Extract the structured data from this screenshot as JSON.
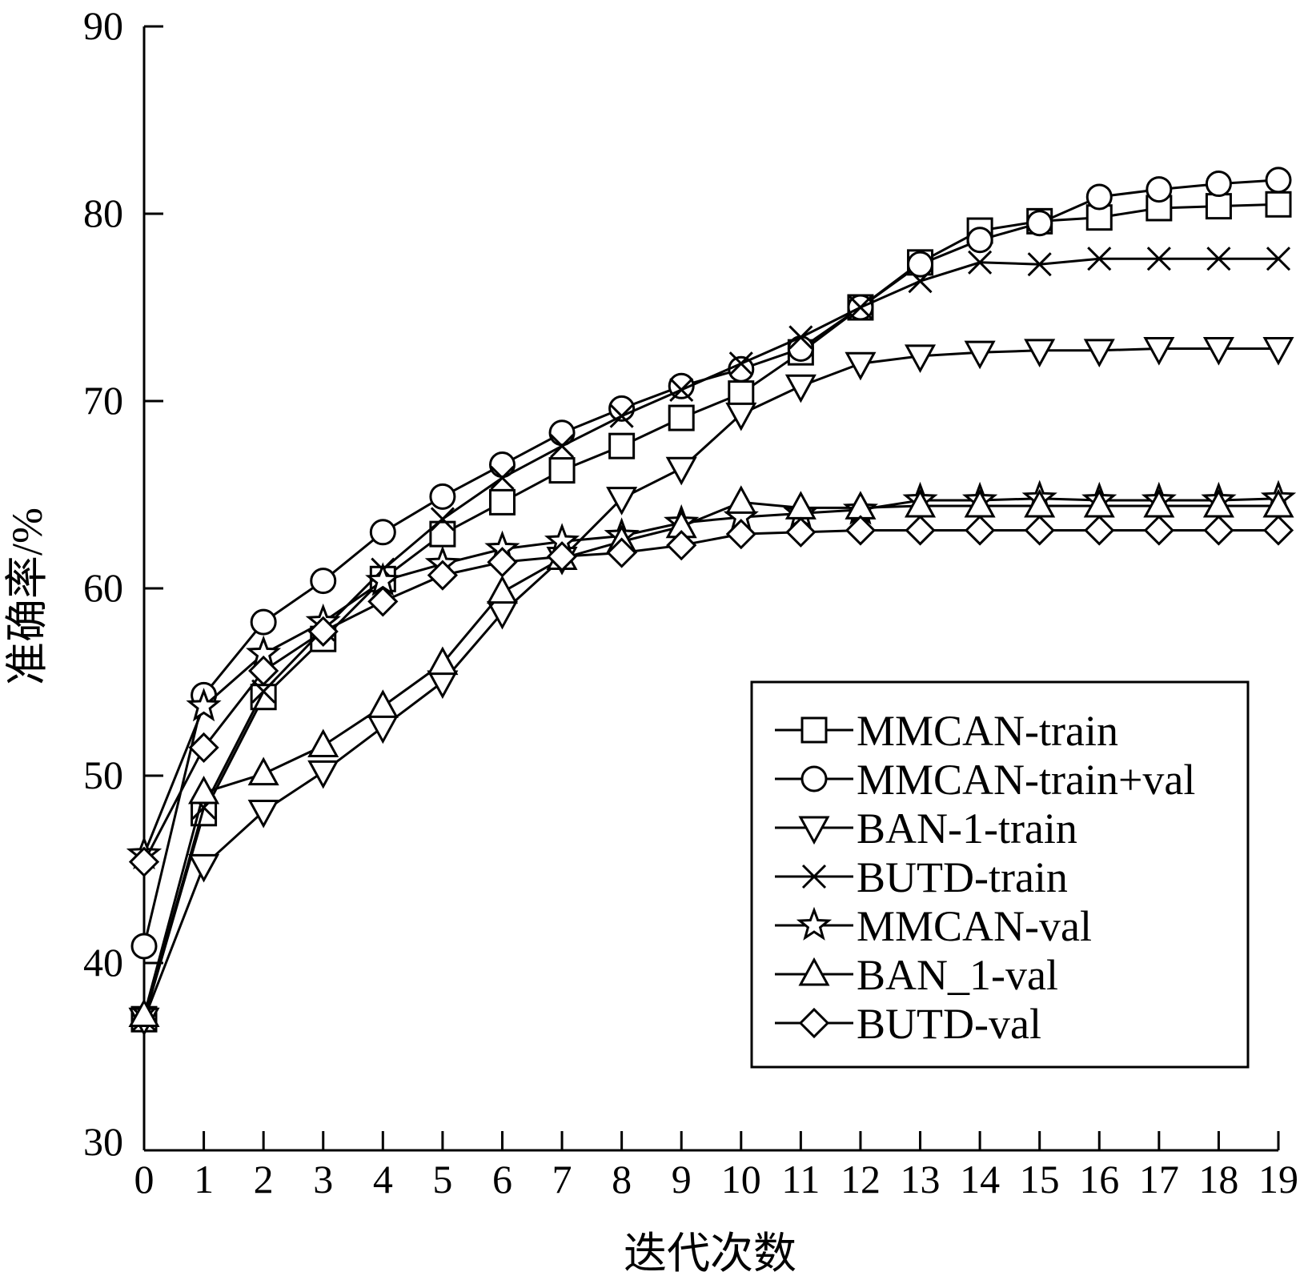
{
  "chart_data": {
    "type": "line",
    "xlabel": "迭代次数",
    "ylabel": "准确率/%",
    "xlim": [
      0,
      19
    ],
    "ylim": [
      30,
      90
    ],
    "x_ticks": [
      "0",
      "1",
      "2",
      "3",
      "4",
      "5",
      "6",
      "7",
      "8",
      "9",
      "10",
      "11",
      "12",
      "13",
      "14",
      "15",
      "16",
      "17",
      "18",
      "19"
    ],
    "y_ticks": [
      "30",
      "40",
      "50",
      "60",
      "70",
      "80",
      "90"
    ],
    "x": [
      0,
      1,
      2,
      3,
      4,
      5,
      6,
      7,
      8,
      9,
      10,
      11,
      12,
      13,
      14,
      15,
      16,
      17,
      18,
      19
    ],
    "grid": false,
    "legend_position": "lower-right",
    "series": [
      {
        "name": "MMCAN-train",
        "marker": "square",
        "values": [
          37.0,
          48.0,
          54.2,
          57.3,
          60.5,
          62.9,
          64.6,
          66.3,
          67.6,
          69.1,
          70.4,
          72.6,
          75.0,
          77.4,
          79.1,
          79.6,
          79.8,
          80.3,
          80.4,
          80.5
        ]
      },
      {
        "name": "MMCAN-train+val",
        "marker": "circle",
        "values": [
          40.9,
          54.3,
          58.2,
          60.4,
          63.0,
          64.9,
          66.6,
          68.3,
          69.6,
          70.8,
          71.7,
          72.8,
          75.0,
          77.3,
          78.6,
          79.5,
          80.9,
          81.3,
          81.6,
          81.8
        ]
      },
      {
        "name": "BAN-1-train",
        "marker": "triangle-down",
        "values": [
          37.0,
          45.2,
          48.1,
          50.2,
          52.6,
          55.0,
          58.7,
          61.6,
          64.8,
          66.4,
          69.3,
          70.8,
          72.0,
          72.4,
          72.6,
          72.7,
          72.7,
          72.8,
          72.8,
          72.8
        ]
      },
      {
        "name": "BUTD-train",
        "marker": "x",
        "values": [
          37.0,
          48.3,
          54.5,
          57.8,
          61.0,
          63.7,
          65.9,
          67.6,
          69.2,
          70.6,
          72.0,
          73.4,
          75.0,
          76.4,
          77.4,
          77.3,
          77.6,
          77.6,
          77.6,
          77.6
        ]
      },
      {
        "name": "MMCAN-val",
        "marker": "star",
        "values": [
          45.8,
          53.7,
          56.5,
          58.2,
          60.4,
          61.3,
          62.1,
          62.5,
          62.8,
          63.5,
          63.8,
          64.0,
          64.2,
          64.7,
          64.7,
          64.8,
          64.7,
          64.7,
          64.7,
          64.8
        ]
      },
      {
        "name": "BAN_1-val",
        "marker": "triangle-up",
        "values": [
          37.2,
          49.1,
          50.1,
          51.6,
          53.7,
          56.0,
          59.8,
          61.6,
          62.5,
          63.3,
          64.6,
          64.3,
          64.3,
          64.4,
          64.4,
          64.4,
          64.4,
          64.4,
          64.4,
          64.4
        ]
      },
      {
        "name": "BUTD-val",
        "marker": "diamond",
        "values": [
          45.4,
          51.5,
          55.6,
          57.7,
          59.3,
          60.7,
          61.4,
          61.7,
          61.9,
          62.3,
          62.9,
          63.0,
          63.1,
          63.1,
          63.1,
          63.1,
          63.1,
          63.1,
          63.1,
          63.1
        ]
      }
    ]
  }
}
